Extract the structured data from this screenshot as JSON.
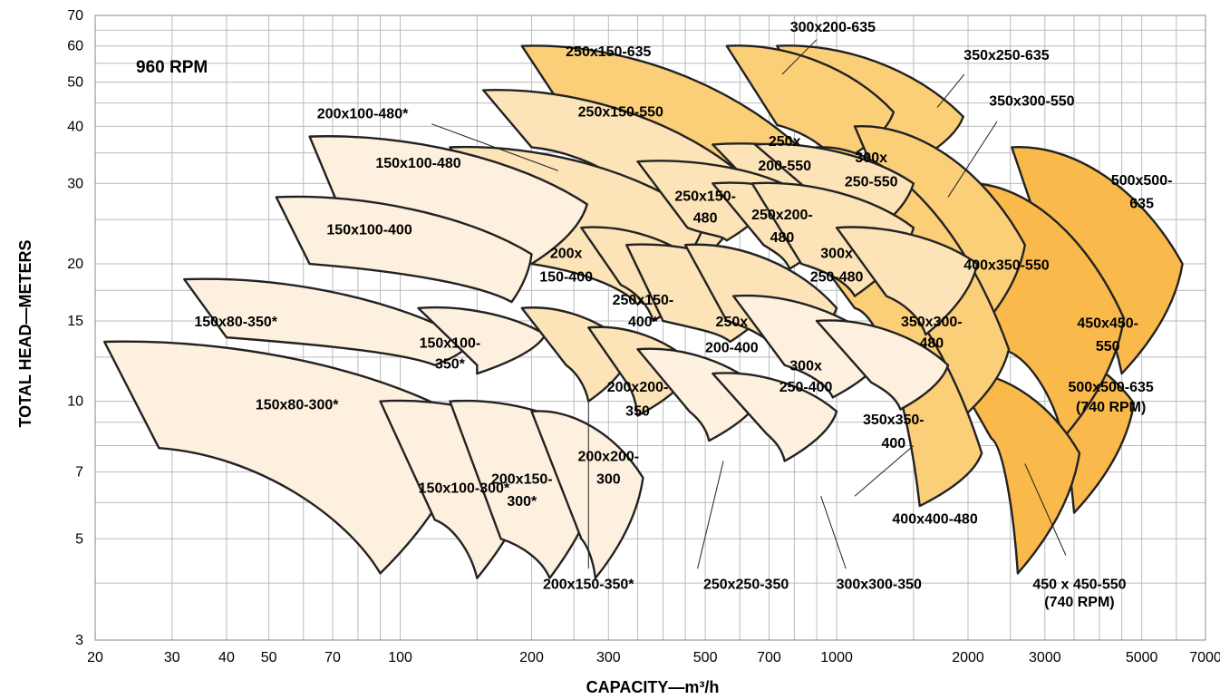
{
  "chart_data": {
    "type": "area",
    "scale": "log-log",
    "speed_label": "960 RPM",
    "xlabel": "CAPACITY—m³/h",
    "ylabel": "TOTAL HEAD—METERS",
    "xlim": [
      20,
      7000
    ],
    "ylim": [
      3,
      70
    ],
    "x_ticks": [
      20,
      30,
      40,
      50,
      70,
      100,
      200,
      300,
      500,
      700,
      1000,
      2000,
      3000,
      5000,
      7000
    ],
    "y_ticks": [
      3,
      5,
      7,
      10,
      15,
      20,
      30,
      40,
      50,
      60,
      70
    ],
    "grid_x": [
      20,
      30,
      40,
      50,
      60,
      70,
      80,
      90,
      100,
      150,
      200,
      250,
      300,
      350,
      400,
      450,
      500,
      600,
      700,
      800,
      900,
      1000,
      1500,
      2000,
      2500,
      3000,
      3500,
      4000,
      4500,
      5000,
      6000,
      7000
    ],
    "grid_y": [
      3,
      4,
      5,
      6,
      7,
      8,
      9,
      10,
      12.5,
      15,
      17.5,
      20,
      25,
      30,
      35,
      40,
      45,
      50,
      55,
      60,
      65,
      70
    ],
    "colors": {
      "light": "#FDF0DE",
      "medium": "#FCE3B8",
      "dark": "#FBCF78",
      "darkest": "#F9B94B",
      "outline": "#222222",
      "grid": "#BBBBBB"
    },
    "series": [
      {
        "name": "500x500-635",
        "shade": "darkest",
        "x": [
          2520,
          3000,
          6200,
          4500
        ],
        "y": [
          36.0,
          22.0,
          20.0,
          11.5
        ]
      },
      {
        "name": "500x500-635 (740 RPM)",
        "shade": "darkest",
        "x": [
          2520,
          2880,
          4800,
          3500
        ],
        "y": [
          13.5,
          11.8,
          9.9,
          5.7
        ]
      },
      {
        "name": "450x450-550",
        "shade": "darkest",
        "x": [
          1950,
          2400,
          4550,
          3300
        ],
        "y": [
          30.0,
          13.0,
          15.2,
          8.3
        ]
      },
      {
        "name": "450 x 450-550 (740 RPM)",
        "shade": "darkest",
        "x": [
          1850,
          2260,
          3600,
          2600
        ],
        "y": [
          11.6,
          8.3,
          7.7,
          4.2
        ]
      },
      {
        "name": "350x250-635",
        "shade": "dark",
        "x": [
          730,
          940,
          1950,
          1400
        ],
        "y": [
          60.0,
          40.3,
          42.0,
          32.2
        ]
      },
      {
        "name": "300x200-635",
        "shade": "dark",
        "x": [
          560,
          730,
          1350,
          1000
        ],
        "y": [
          60.0,
          40.3,
          43.0,
          33.0
        ]
      },
      {
        "name": "350x300-550",
        "shade": "dark",
        "x": [
          1100,
          1500,
          2700,
          2000
        ],
        "y": [
          40.0,
          20.0,
          22.0,
          13.5
        ]
      },
      {
        "name": "400x350-550",
        "shade": "dark",
        "x": [
          900,
          1200,
          2480,
          1750
        ],
        "y": [
          36.0,
          20.0,
          13.0,
          8.5
        ]
      },
      {
        "name": "400x400-480",
        "shade": "dark",
        "x": [
          860,
          1100,
          2150,
          1550
        ],
        "y": [
          22.0,
          16.0,
          7.7,
          5.9
        ]
      },
      {
        "name": "250x150-635",
        "shade": "dark",
        "x": [
          190,
          250,
          900,
          650
        ],
        "y": [
          60.0,
          40.3,
          33.0,
          24.0
        ]
      },
      {
        "name": "250x150-550",
        "shade": "medium",
        "x": [
          155,
          200,
          640,
          480
        ],
        "y": [
          48.0,
          36.0,
          30.0,
          20.0
        ]
      },
      {
        "name": "250x200-550",
        "shade": "medium",
        "x": [
          520,
          680,
          1050,
          780
        ],
        "y": [
          36.5,
          28.0,
          34.0,
          27.0
        ]
      },
      {
        "name": "300x250-550",
        "shade": "medium",
        "x": [
          650,
          900,
          1500,
          1100
        ],
        "y": [
          36.5,
          28.0,
          30.0,
          22.0
        ]
      },
      {
        "name": "200x100-480*",
        "shade": "medium",
        "x": [
          130,
          200,
          500,
          350
        ],
        "y": [
          36.0,
          20.0,
          25.0,
          16.3
        ]
      },
      {
        "name": "150x100-480",
        "shade": "light",
        "x": [
          62,
          72,
          268,
          200
        ],
        "y": [
          38.0,
          27.0,
          27.0,
          20.0
        ]
      },
      {
        "name": "250x150-480",
        "shade": "medium",
        "x": [
          350,
          455,
          750,
          560
        ],
        "y": [
          33.5,
          24.0,
          30.0,
          22.5
        ]
      },
      {
        "name": "250x200-480",
        "shade": "medium",
        "x": [
          520,
          680,
          1050,
          780
        ],
        "y": [
          30.0,
          22.0,
          26.0,
          19.5
        ]
      },
      {
        "name": "300x250-480",
        "shade": "medium",
        "x": [
          640,
          830,
          1500,
          1100
        ],
        "y": [
          30.0,
          20.0,
          24.0,
          17.0
        ]
      },
      {
        "name": "350x300-480",
        "shade": "medium",
        "x": [
          1000,
          1300,
          2100,
          1600
        ],
        "y": [
          24.0,
          17.0,
          20.0,
          14.0
        ]
      },
      {
        "name": "150x100-400",
        "shade": "light",
        "x": [
          52,
          62,
          200,
          180
        ],
        "y": [
          28.0,
          20.0,
          21.0,
          16.5
        ]
      },
      {
        "name": "200x150-400",
        "shade": "medium",
        "x": [
          260,
          320,
          500,
          380
        ],
        "y": [
          24.0,
          18.0,
          19.5,
          15.0
        ]
      },
      {
        "name": "250x150-400*",
        "shade": "medium",
        "x": [
          330,
          400,
          750,
          570
        ],
        "y": [
          22.0,
          15.0,
          18.0,
          13.5
        ]
      },
      {
        "name": "250x200-400",
        "shade": "medium",
        "x": [
          450,
          560,
          1000,
          750
        ],
        "y": [
          22.0,
          15.0,
          16.0,
          12.5
        ]
      },
      {
        "name": "300x250-400",
        "shade": "light",
        "x": [
          580,
          760,
          1300,
          980
        ],
        "y": [
          17.0,
          12.0,
          13.0,
          10.2
        ]
      },
      {
        "name": "350x350-400",
        "shade": "light",
        "x": [
          900,
          1200,
          1800,
          1400
        ],
        "y": [
          15.0,
          11.0,
          12.0,
          9.6
        ]
      },
      {
        "name": "150x80-350*",
        "shade": "light",
        "x": [
          32,
          40,
          145,
          120
        ],
        "y": [
          18.5,
          13.8,
          13.5,
          12.0
        ]
      },
      {
        "name": "150x100-350*",
        "shade": "light",
        "x": [
          110,
          150,
          215,
          150
        ],
        "y": [
          16.0,
          12.0,
          14.0,
          11.5
        ]
      },
      {
        "name": "200x150-350*",
        "shade": "medium",
        "x": [
          190,
          240,
          340,
          270
        ],
        "y": [
          16.0,
          12.0,
          13.0,
          10.0
        ]
      },
      {
        "name": "200x200-350",
        "shade": "medium",
        "x": [
          270,
          330,
          470,
          350
        ],
        "y": [
          14.5,
          11.0,
          12.0,
          9.3
        ]
      },
      {
        "name": "250x250-350",
        "shade": "light",
        "x": [
          350,
          460,
          680,
          510
        ],
        "y": [
          13.0,
          9.5,
          10.5,
          8.2
        ]
      },
      {
        "name": "300x300-350",
        "shade": "light",
        "x": [
          520,
          690,
          1000,
          760
        ],
        "y": [
          11.5,
          8.5,
          9.5,
          7.4
        ]
      },
      {
        "name": "150x80-300*",
        "shade": "light",
        "x": [
          21,
          28,
          145,
          90
        ],
        "y": [
          13.5,
          7.9,
          9.0,
          4.2
        ]
      },
      {
        "name": "150x100-300*",
        "shade": "light",
        "x": [
          90,
          120,
          215,
          150
        ],
        "y": [
          10.0,
          5.5,
          8.4,
          4.1
        ]
      },
      {
        "name": "200x150-300*",
        "shade": "light",
        "x": [
          130,
          170,
          300,
          220
        ],
        "y": [
          10.0,
          5.0,
          8.0,
          4.1
        ]
      },
      {
        "name": "200x200-300",
        "shade": "light",
        "x": [
          200,
          260,
          360,
          280
        ],
        "y": [
          9.5,
          5.0,
          6.8,
          4.1
        ]
      }
    ],
    "labels": [
      {
        "text": "150x80-300*",
        "x": 58,
        "y": 9.6,
        "anchor": "middle"
      },
      {
        "text": "150x100-300*",
        "x": 140,
        "y": 6.3,
        "anchor": "middle"
      },
      {
        "text": "200x150-",
        "x": 190,
        "y": 6.6,
        "anchor": "middle"
      },
      {
        "text": "300*",
        "x": 190,
        "y": 5.9,
        "anchor": "middle"
      },
      {
        "text": "200x200-",
        "x": 300,
        "y": 7.4,
        "anchor": "middle"
      },
      {
        "text": "300",
        "x": 300,
        "y": 6.6,
        "anchor": "middle"
      },
      {
        "text": "150x80-350*",
        "x": 42,
        "y": 14.6,
        "anchor": "middle"
      },
      {
        "text": "150x100-",
        "x": 130,
        "y": 13.1,
        "anchor": "middle"
      },
      {
        "text": "350*",
        "x": 130,
        "y": 11.8,
        "anchor": "middle"
      },
      {
        "text": "200x200-",
        "x": 350,
        "y": 10.5,
        "anchor": "middle"
      },
      {
        "text": "350",
        "x": 350,
        "y": 9.3,
        "anchor": "middle"
      },
      {
        "text": "150x100-400",
        "x": 85,
        "y": 23.2,
        "anchor": "middle"
      },
      {
        "text": "200x",
        "x": 240,
        "y": 20.6,
        "anchor": "middle"
      },
      {
        "text": "150-400",
        "x": 240,
        "y": 18.3,
        "anchor": "middle"
      },
      {
        "text": "250x150-",
        "x": 360,
        "y": 16.3,
        "anchor": "middle"
      },
      {
        "text": "400*",
        "x": 360,
        "y": 14.6,
        "anchor": "middle"
      },
      {
        "text": "250x",
        "x": 575,
        "y": 14.6,
        "anchor": "middle"
      },
      {
        "text": "200-400",
        "x": 575,
        "y": 12.8,
        "anchor": "middle"
      },
      {
        "text": "300x",
        "x": 850,
        "y": 11.7,
        "anchor": "middle"
      },
      {
        "text": "250-400",
        "x": 850,
        "y": 10.5,
        "anchor": "middle"
      },
      {
        "text": "350x350-",
        "x": 1350,
        "y": 8.9,
        "anchor": "middle"
      },
      {
        "text": "400",
        "x": 1350,
        "y": 7.9,
        "anchor": "middle"
      },
      {
        "text": "350x300-",
        "x": 1650,
        "y": 14.6,
        "anchor": "middle"
      },
      {
        "text": "480",
        "x": 1650,
        "y": 13.1,
        "anchor": "middle"
      },
      {
        "text": "300x",
        "x": 1000,
        "y": 20.6,
        "anchor": "middle"
      },
      {
        "text": "250-480",
        "x": 1000,
        "y": 18.3,
        "anchor": "middle"
      },
      {
        "text": "250x200-",
        "x": 750,
        "y": 25.0,
        "anchor": "middle"
      },
      {
        "text": "480",
        "x": 750,
        "y": 22.3,
        "anchor": "middle"
      },
      {
        "text": "250x150-",
        "x": 500,
        "y": 27.5,
        "anchor": "middle"
      },
      {
        "text": "480",
        "x": 500,
        "y": 24.6,
        "anchor": "middle"
      },
      {
        "text": "150x100-480",
        "x": 110,
        "y": 32.5,
        "anchor": "middle"
      },
      {
        "text": "200x100-480*",
        "x": 82,
        "y": 41.7,
        "anchor": "middle"
      },
      {
        "text": "250x150-550",
        "x": 320,
        "y": 42.0,
        "anchor": "middle"
      },
      {
        "text": "250x",
        "x": 760,
        "y": 36.2,
        "anchor": "middle"
      },
      {
        "text": "200-550",
        "x": 760,
        "y": 32.0,
        "anchor": "middle"
      },
      {
        "text": "300x",
        "x": 1200,
        "y": 33.4,
        "anchor": "middle"
      },
      {
        "text": "250-550",
        "x": 1200,
        "y": 29.6,
        "anchor": "middle"
      },
      {
        "text": "250x150-635",
        "x": 300,
        "y": 57.0,
        "anchor": "middle"
      },
      {
        "text": "300x200-635",
        "x": 980,
        "y": 64.5,
        "anchor": "middle"
      },
      {
        "text": "350x250-635",
        "x": 2450,
        "y": 56.0,
        "anchor": "middle"
      },
      {
        "text": "350x300-550",
        "x": 2800,
        "y": 44.4,
        "anchor": "middle"
      },
      {
        "text": "500x500-",
        "x": 5000,
        "y": 29.8,
        "anchor": "middle"
      },
      {
        "text": "635",
        "x": 5000,
        "y": 26.5,
        "anchor": "middle"
      },
      {
        "text": "400x350-550",
        "x": 2450,
        "y": 19.4,
        "anchor": "middle"
      },
      {
        "text": "450x450-",
        "x": 4180,
        "y": 14.5,
        "anchor": "middle"
      },
      {
        "text": "550",
        "x": 4180,
        "y": 12.9,
        "anchor": "middle"
      },
      {
        "text": "500x500-635",
        "x": 4250,
        "y": 10.5,
        "anchor": "middle"
      },
      {
        "text": "(740 RPM)",
        "x": 4250,
        "y": 9.5,
        "anchor": "middle"
      },
      {
        "text": "400x400-480",
        "x": 1680,
        "y": 5.4,
        "anchor": "middle"
      },
      {
        "text": "200x150-350*",
        "x": 270,
        "y": 3.88,
        "anchor": "middle"
      },
      {
        "text": "250x250-350",
        "x": 620,
        "y": 3.88,
        "anchor": "middle"
      },
      {
        "text": "300x300-350",
        "x": 1250,
        "y": 3.88,
        "anchor": "middle"
      },
      {
        "text": "450 x 450-550",
        "x": 3600,
        "y": 3.88,
        "anchor": "middle"
      },
      {
        "text": "(740 RPM)",
        "x": 3600,
        "y": 3.55,
        "anchor": "middle"
      }
    ],
    "leaders": [
      {
        "from": [
          118,
          40.5
        ],
        "to": [
          230,
          32.0
        ]
      },
      {
        "from": [
          900,
          62.0
        ],
        "to": [
          750,
          52.0
        ]
      },
      {
        "from": [
          1960,
          52.0
        ],
        "to": [
          1700,
          44.0
        ]
      },
      {
        "from": [
          2330,
          41.0
        ],
        "to": [
          1800,
          28.0
        ]
      },
      {
        "from": [
          1100,
          6.2
        ],
        "to": [
          1500,
          8.0
        ]
      },
      {
        "from": [
          3350,
          4.6
        ],
        "to": [
          2700,
          7.3
        ]
      },
      {
        "from": [
          270,
          4.3
        ],
        "to": [
          270,
          10.0
        ]
      },
      {
        "from": [
          480,
          4.3
        ],
        "to": [
          550,
          7.4
        ]
      },
      {
        "from": [
          1050,
          4.3
        ],
        "to": [
          920,
          6.2
        ]
      }
    ]
  }
}
